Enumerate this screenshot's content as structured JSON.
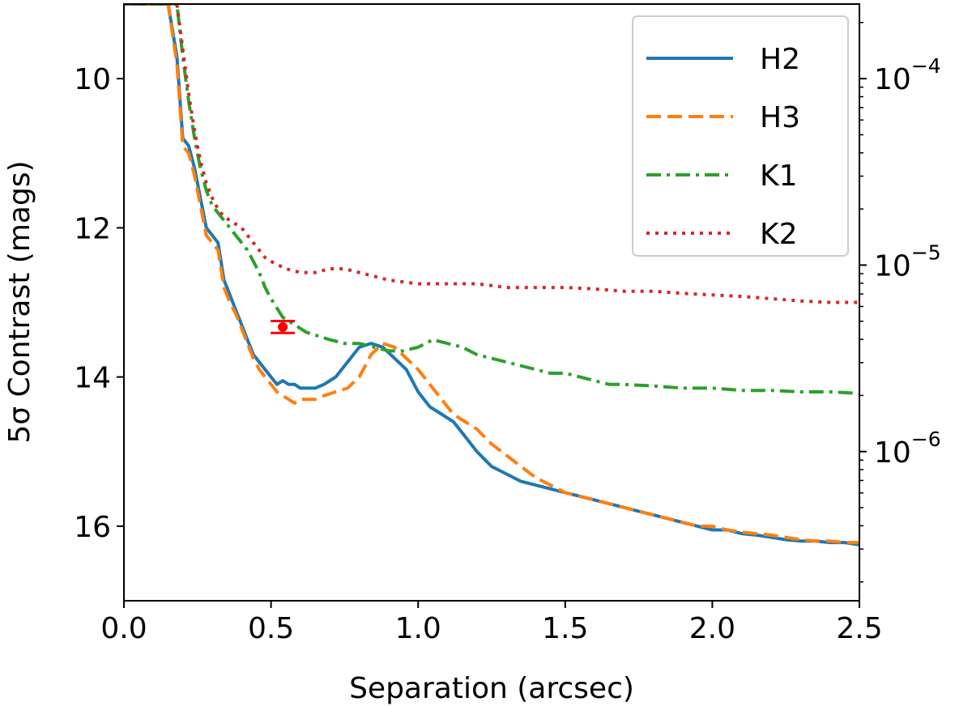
{
  "chart_data": {
    "type": "line",
    "xlabel": "Separation (arcsec)",
    "ylabel": "5σ Contrast (mags)",
    "xlim": [
      0.0,
      2.5
    ],
    "ylim": [
      17.0,
      9.0
    ],
    "y_inverted": true,
    "x_ticks": [
      "0.0",
      "0.5",
      "1.0",
      "1.5",
      "2.0",
      "2.5"
    ],
    "y_ticks": [
      "10",
      "12",
      "14",
      "16"
    ],
    "secondary_y": {
      "scale": "log",
      "note_values": [
        0.0001,
        1e-05,
        1e-06
      ],
      "tick_labels": [
        {
          "base": "10",
          "exp": "−4"
        },
        {
          "base": "10",
          "exp": "−5"
        },
        {
          "base": "10",
          "exp": "−6"
        }
      ]
    },
    "legend": {
      "placement": "top-right"
    },
    "series": [
      {
        "name": "H2",
        "color": "#1f77b4",
        "style": "solid",
        "x": [
          0.0,
          0.1,
          0.15,
          0.18,
          0.2,
          0.22,
          0.24,
          0.26,
          0.28,
          0.3,
          0.32,
          0.34,
          0.36,
          0.38,
          0.4,
          0.42,
          0.44,
          0.46,
          0.48,
          0.5,
          0.52,
          0.54,
          0.56,
          0.58,
          0.6,
          0.62,
          0.65,
          0.68,
          0.72,
          0.76,
          0.8,
          0.84,
          0.88,
          0.92,
          0.96,
          1.0,
          1.04,
          1.08,
          1.12,
          1.16,
          1.2,
          1.25,
          1.3,
          1.35,
          1.4,
          1.45,
          1.5,
          1.55,
          1.6,
          1.65,
          1.7,
          1.75,
          1.8,
          1.85,
          1.9,
          1.95,
          2.0,
          2.05,
          2.1,
          2.15,
          2.2,
          2.25,
          2.3,
          2.35,
          2.4,
          2.45,
          2.5
        ],
        "y": [
          9.0,
          9.0,
          9.0,
          9.7,
          10.8,
          10.9,
          11.2,
          11.6,
          12.0,
          12.1,
          12.2,
          12.7,
          12.9,
          13.1,
          13.3,
          13.5,
          13.7,
          13.8,
          13.9,
          14.0,
          14.1,
          14.05,
          14.1,
          14.1,
          14.15,
          14.15,
          14.15,
          14.1,
          14.0,
          13.8,
          13.6,
          13.55,
          13.6,
          13.75,
          13.9,
          14.2,
          14.4,
          14.5,
          14.6,
          14.8,
          15.0,
          15.2,
          15.3,
          15.4,
          15.45,
          15.5,
          15.55,
          15.6,
          15.65,
          15.7,
          15.75,
          15.8,
          15.85,
          15.9,
          15.95,
          16.0,
          16.05,
          16.05,
          16.1,
          16.12,
          16.15,
          16.18,
          16.2,
          16.2,
          16.22,
          16.22,
          16.25
        ]
      },
      {
        "name": "H3",
        "color": "#ff7f0e",
        "style": "dashed",
        "x": [
          0.0,
          0.1,
          0.15,
          0.18,
          0.2,
          0.22,
          0.24,
          0.26,
          0.28,
          0.3,
          0.32,
          0.34,
          0.36,
          0.38,
          0.4,
          0.42,
          0.44,
          0.46,
          0.48,
          0.5,
          0.52,
          0.54,
          0.56,
          0.58,
          0.6,
          0.62,
          0.65,
          0.68,
          0.72,
          0.76,
          0.8,
          0.84,
          0.88,
          0.92,
          0.96,
          1.0,
          1.04,
          1.08,
          1.12,
          1.16,
          1.2,
          1.25,
          1.3,
          1.35,
          1.4,
          1.45,
          1.5,
          1.55,
          1.6,
          1.65,
          1.7,
          1.75,
          1.8,
          1.85,
          1.9,
          1.95,
          2.0,
          2.05,
          2.1,
          2.15,
          2.2,
          2.25,
          2.3,
          2.35,
          2.4,
          2.45,
          2.5
        ],
        "y": [
          9.0,
          9.0,
          9.0,
          9.8,
          10.9,
          11.0,
          11.3,
          11.7,
          12.1,
          12.2,
          12.3,
          12.8,
          13.0,
          13.15,
          13.35,
          13.55,
          13.75,
          13.9,
          14.0,
          14.1,
          14.2,
          14.25,
          14.3,
          14.35,
          14.3,
          14.3,
          14.3,
          14.25,
          14.2,
          14.15,
          14.0,
          13.7,
          13.55,
          13.6,
          13.75,
          13.9,
          14.1,
          14.3,
          14.5,
          14.6,
          14.7,
          14.9,
          15.05,
          15.2,
          15.35,
          15.45,
          15.55,
          15.6,
          15.65,
          15.7,
          15.75,
          15.8,
          15.85,
          15.9,
          15.95,
          16.0,
          16.0,
          16.05,
          16.08,
          16.1,
          16.12,
          16.15,
          16.18,
          16.2,
          16.2,
          16.22,
          16.22
        ]
      },
      {
        "name": "K1",
        "color": "#2ca02c",
        "style": "dashdot",
        "x": [
          0.0,
          0.1,
          0.15,
          0.18,
          0.2,
          0.22,
          0.24,
          0.26,
          0.28,
          0.3,
          0.32,
          0.34,
          0.36,
          0.38,
          0.4,
          0.42,
          0.44,
          0.46,
          0.48,
          0.5,
          0.54,
          0.58,
          0.62,
          0.66,
          0.7,
          0.75,
          0.8,
          0.85,
          0.9,
          0.95,
          1.0,
          1.05,
          1.1,
          1.15,
          1.2,
          1.25,
          1.3,
          1.35,
          1.4,
          1.45,
          1.5,
          1.55,
          1.6,
          1.65,
          1.7,
          1.8,
          1.9,
          2.0,
          2.1,
          2.2,
          2.3,
          2.4,
          2.5
        ],
        "y": [
          9.0,
          9.0,
          9.0,
          9.0,
          9.7,
          10.3,
          10.8,
          11.2,
          11.5,
          11.7,
          11.8,
          11.9,
          12.0,
          12.1,
          12.2,
          12.3,
          12.45,
          12.6,
          12.8,
          12.95,
          13.2,
          13.3,
          13.4,
          13.45,
          13.5,
          13.55,
          13.55,
          13.6,
          13.65,
          13.65,
          13.6,
          13.5,
          13.55,
          13.6,
          13.7,
          13.75,
          13.8,
          13.85,
          13.9,
          13.95,
          13.95,
          14.0,
          14.05,
          14.1,
          14.1,
          14.12,
          14.15,
          14.15,
          14.18,
          14.18,
          14.2,
          14.2,
          14.22
        ]
      },
      {
        "name": "K2",
        "color": "#d62728",
        "style": "dotted",
        "x": [
          0.0,
          0.1,
          0.15,
          0.18,
          0.2,
          0.22,
          0.24,
          0.26,
          0.28,
          0.3,
          0.32,
          0.34,
          0.36,
          0.38,
          0.4,
          0.42,
          0.44,
          0.46,
          0.48,
          0.5,
          0.55,
          0.6,
          0.65,
          0.7,
          0.75,
          0.8,
          0.9,
          1.0,
          1.1,
          1.2,
          1.3,
          1.4,
          1.5,
          1.6,
          1.7,
          1.8,
          1.9,
          2.0,
          2.1,
          2.2,
          2.3,
          2.4,
          2.5
        ],
        "y": [
          9.0,
          9.0,
          9.0,
          9.0,
          9.6,
          10.2,
          10.7,
          11.1,
          11.4,
          11.6,
          11.75,
          11.85,
          11.9,
          11.95,
          12.0,
          12.1,
          12.2,
          12.3,
          12.4,
          12.45,
          12.55,
          12.6,
          12.6,
          12.55,
          12.55,
          12.6,
          12.7,
          12.75,
          12.75,
          12.75,
          12.8,
          12.8,
          12.8,
          12.82,
          12.85,
          12.85,
          12.88,
          12.9,
          12.92,
          12.95,
          12.98,
          13.0,
          13.0
        ]
      }
    ],
    "points": [
      {
        "x": 0.54,
        "y": 13.33,
        "y_err": 0.08,
        "color": "#ff0000"
      }
    ]
  }
}
